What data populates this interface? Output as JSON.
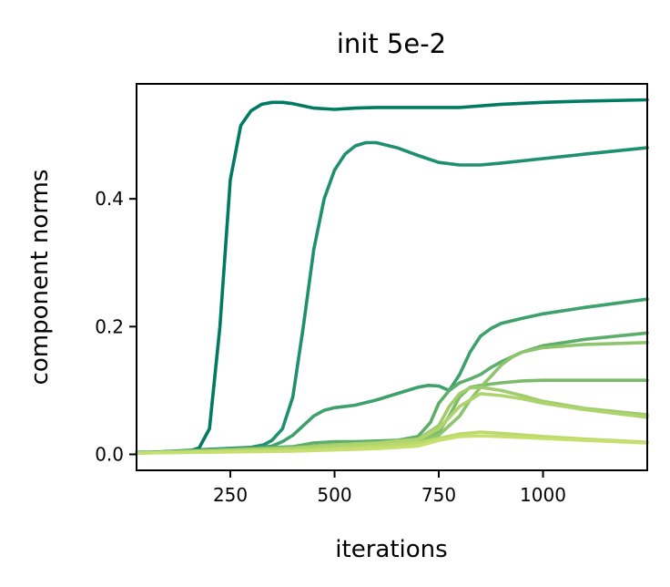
{
  "chart_data": {
    "type": "line",
    "title": "init 5e-2",
    "xlabel": "iterations",
    "ylabel": "component norms",
    "xlim": [
      25,
      1250
    ],
    "ylim": [
      -0.025,
      0.58
    ],
    "xticks": [
      250,
      500,
      750,
      1000
    ],
    "xtick_labels": [
      "250",
      "500",
      "750",
      "1000"
    ],
    "yticks": [
      0.0,
      0.2,
      0.4
    ],
    "ytick_labels": [
      "0.0",
      "0.2",
      "0.4"
    ],
    "grid": false,
    "series": [
      {
        "color": "#007a63",
        "x": [
          25,
          150,
          175,
          200,
          225,
          250,
          275,
          300,
          325,
          350,
          375,
          400,
          450,
          500,
          550,
          600,
          700,
          800,
          900,
          1000,
          1100,
          1250
        ],
        "y": [
          0.003,
          0.005,
          0.01,
          0.04,
          0.2,
          0.43,
          0.515,
          0.538,
          0.548,
          0.551,
          0.551,
          0.549,
          0.542,
          0.54,
          0.542,
          0.543,
          0.543,
          0.543,
          0.548,
          0.551,
          0.553,
          0.555
        ]
      },
      {
        "color": "#1e9070",
        "x": [
          25,
          200,
          300,
          330,
          350,
          375,
          400,
          425,
          450,
          475,
          500,
          525,
          550,
          575,
          600,
          650,
          700,
          750,
          800,
          850,
          900,
          1000,
          1100,
          1250
        ],
        "y": [
          0.002,
          0.008,
          0.011,
          0.015,
          0.022,
          0.04,
          0.09,
          0.2,
          0.32,
          0.4,
          0.445,
          0.47,
          0.483,
          0.488,
          0.488,
          0.48,
          0.468,
          0.457,
          0.453,
          0.453,
          0.456,
          0.463,
          0.47,
          0.48
        ]
      },
      {
        "color": "#3ea06a",
        "x": [
          25,
          300,
          350,
          375,
          400,
          425,
          450,
          475,
          500,
          550,
          600,
          650,
          700,
          725,
          750,
          775,
          800,
          825,
          850,
          875,
          900,
          950,
          1000,
          1100,
          1250
        ],
        "y": [
          0.002,
          0.009,
          0.013,
          0.02,
          0.03,
          0.045,
          0.06,
          0.069,
          0.073,
          0.077,
          0.085,
          0.095,
          0.105,
          0.108,
          0.107,
          0.1,
          0.125,
          0.16,
          0.185,
          0.197,
          0.205,
          0.213,
          0.22,
          0.23,
          0.243
        ]
      },
      {
        "color": "#5dae6a",
        "x": [
          25,
          400,
          450,
          500,
          550,
          600,
          650,
          700,
          730,
          750,
          775,
          800,
          825,
          850,
          875,
          900,
          950,
          1000,
          1100,
          1250
        ],
        "y": [
          0.002,
          0.012,
          0.018,
          0.02,
          0.02,
          0.021,
          0.022,
          0.028,
          0.05,
          0.08,
          0.1,
          0.112,
          0.118,
          0.125,
          0.136,
          0.145,
          0.16,
          0.17,
          0.18,
          0.19
        ]
      },
      {
        "color": "#79bb6a",
        "x": [
          25,
          400,
          500,
          600,
          700,
          750,
          775,
          800,
          825,
          850,
          875,
          900,
          950,
          1000,
          1100,
          1250
        ],
        "y": [
          0.002,
          0.01,
          0.015,
          0.018,
          0.022,
          0.035,
          0.06,
          0.09,
          0.105,
          0.108,
          0.11,
          0.112,
          0.115,
          0.116,
          0.116,
          0.116
        ]
      },
      {
        "color": "#8ec56c",
        "x": [
          25,
          400,
          500,
          600,
          700,
          750,
          800,
          825,
          850,
          875,
          900,
          925,
          950,
          1000,
          1100,
          1250
        ],
        "y": [
          0.002,
          0.01,
          0.015,
          0.018,
          0.022,
          0.03,
          0.06,
          0.085,
          0.105,
          0.122,
          0.14,
          0.152,
          0.16,
          0.167,
          0.172,
          0.175
        ]
      },
      {
        "color": "#a0cc6c",
        "x": [
          25,
          400,
          500,
          600,
          700,
          750,
          775,
          800,
          825,
          850,
          900,
          950,
          1000,
          1100,
          1250
        ],
        "y": [
          0.002,
          0.01,
          0.015,
          0.018,
          0.024,
          0.045,
          0.075,
          0.095,
          0.104,
          0.105,
          0.1,
          0.092,
          0.083,
          0.072,
          0.062
        ]
      },
      {
        "color": "#aed46d",
        "x": [
          25,
          400,
          500,
          600,
          700,
          750,
          800,
          850,
          900,
          950,
          1000,
          1100,
          1250
        ],
        "y": [
          0.002,
          0.009,
          0.013,
          0.017,
          0.023,
          0.04,
          0.075,
          0.095,
          0.092,
          0.087,
          0.08,
          0.07,
          0.058
        ]
      },
      {
        "color": "#bcd96d",
        "x": [
          25,
          400,
          500,
          600,
          700,
          750,
          800,
          850,
          900,
          1000,
          1100,
          1250
        ],
        "y": [
          0.002,
          0.006,
          0.009,
          0.013,
          0.018,
          0.025,
          0.032,
          0.035,
          0.033,
          0.028,
          0.024,
          0.019
        ]
      },
      {
        "color": "#c6df6e",
        "x": [
          25,
          400,
          500,
          600,
          700,
          750,
          800,
          850,
          900,
          1000,
          1100,
          1250
        ],
        "y": [
          0.002,
          0.005,
          0.007,
          0.009,
          0.013,
          0.022,
          0.028,
          0.029,
          0.028,
          0.025,
          0.022,
          0.018
        ]
      }
    ]
  }
}
